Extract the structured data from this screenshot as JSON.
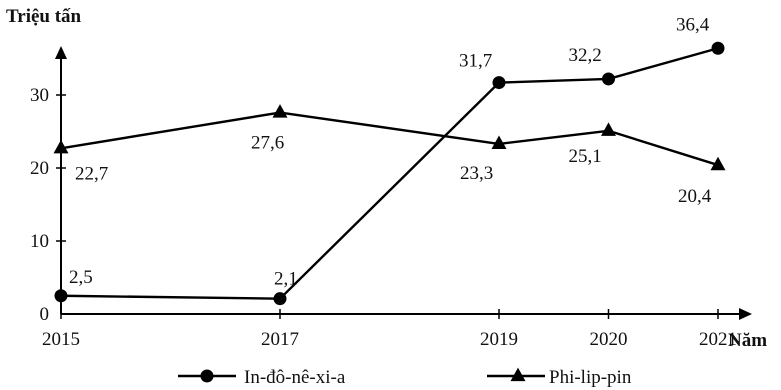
{
  "chart_data": {
    "type": "line",
    "title": "",
    "ylabel": "Triệu tấn",
    "xlabel": "Năm",
    "x": [
      "2015",
      "2017",
      "2019",
      "2020",
      "2021"
    ],
    "x_numeric": [
      2015,
      2017,
      2019,
      2020,
      2021
    ],
    "xlim": [
      2015,
      2022.2
    ],
    "ylim": [
      0,
      36
    ],
    "yticks": [
      "0",
      "10",
      "20",
      "30"
    ],
    "series": [
      {
        "name": "In-đô-nê-xi-a",
        "marker": "circle",
        "values": [
          2.5,
          2.1,
          31.7,
          32.2,
          36.4
        ],
        "labels": [
          "2,5",
          "2,1",
          "31,7",
          "32,2",
          "36,4"
        ]
      },
      {
        "name": "Phi-lip-pin",
        "marker": "triangle",
        "values": [
          22.7,
          27.6,
          23.3,
          25.1,
          20.4
        ],
        "labels": [
          "22,7",
          "27,6",
          "23,3",
          "25,1",
          "20,4"
        ]
      }
    ],
    "grid": false,
    "legend_position": "bottom",
    "line_color": "#000000"
  }
}
